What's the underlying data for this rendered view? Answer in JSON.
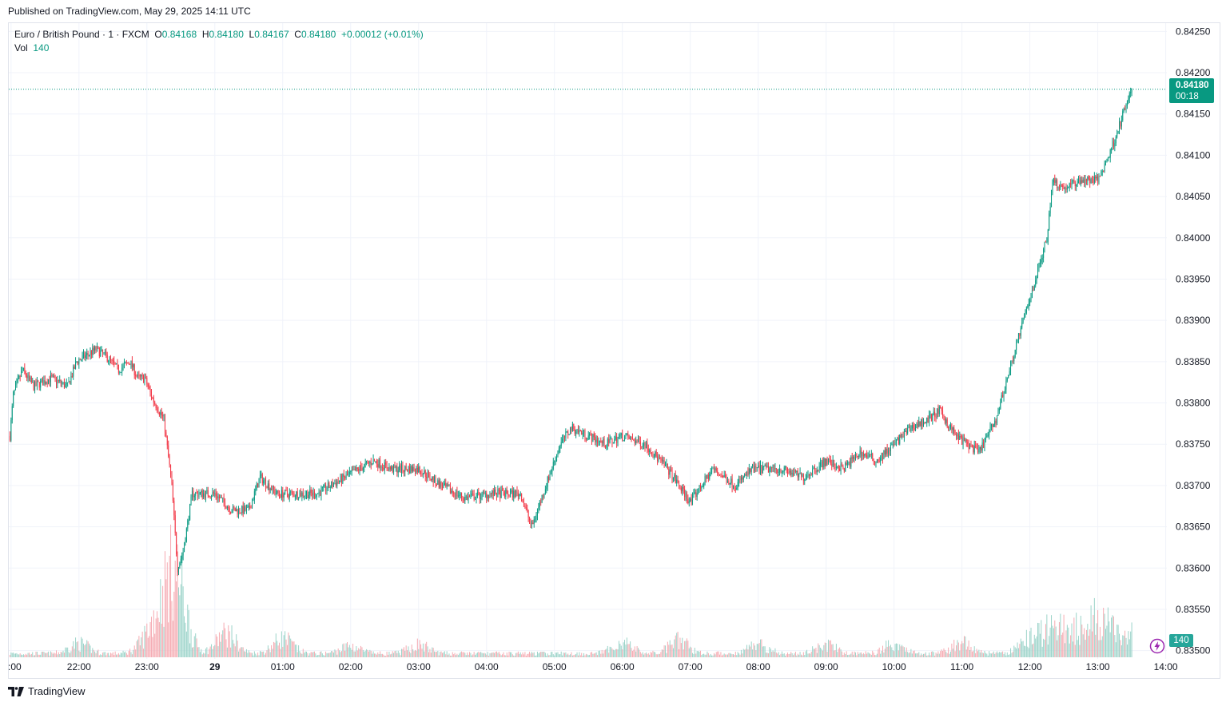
{
  "published": "Published on TradingView.com, May 29, 2025 14:11 UTC",
  "legend": {
    "symbol": "Euro / British Pound · 1 · FXCM",
    "o_label": "O",
    "o": "0.84168",
    "h_label": "H",
    "h": "0.84180",
    "l_label": "L",
    "l": "0.84167",
    "c_label": "C",
    "c": "0.84180",
    "change": "+0.00012 (+0.01%)",
    "vol_label": "Vol",
    "vol": "140"
  },
  "price_tag": {
    "price": "0.84180",
    "countdown": "00:18"
  },
  "vol_tag": "140",
  "footer": {
    "brand": "TradingView"
  },
  "colors": {
    "up": "#089981",
    "down": "#f23645",
    "vol_up": "#9bd3c9",
    "vol_down": "#f5aab1",
    "grid": "#f0f3fa"
  },
  "icons": {
    "bolt": "lightning-icon",
    "logo": "tradingview-logo-icon"
  },
  "chart_data": {
    "type": "candlestick",
    "symbol": "EUR/GBP",
    "interval": "1 minute",
    "ylim": [
      0.8349,
      0.8426
    ],
    "y_ticks": [
      "0.84250",
      "0.84200",
      "0.84150",
      "0.84100",
      "0.84050",
      "0.84000",
      "0.83950",
      "0.83900",
      "0.83850",
      "0.83800",
      "0.83750",
      "0.83700",
      "0.83650",
      "0.83600",
      "0.83550",
      "0.83500"
    ],
    "x_ticks": [
      ":00",
      "22:00",
      "23:00",
      "29",
      "01:00",
      "02:00",
      "03:00",
      "04:00",
      "05:00",
      "06:00",
      "07:00",
      "08:00",
      "09:00",
      "10:00",
      "11:00",
      "12:00",
      "13:00",
      "14:00"
    ],
    "x_tick_minutes": [
      -120,
      -60,
      0,
      60,
      120,
      180,
      240,
      300,
      360,
      420,
      480,
      540,
      600,
      660,
      720,
      780,
      840,
      900
    ],
    "x_range_minutes": [
      -122,
      901
    ],
    "last_price": 0.8418,
    "path_anchors": [
      [
        -121,
        0.8376
      ],
      [
        -118,
        0.8381
      ],
      [
        -110,
        0.8384
      ],
      [
        -100,
        0.8382
      ],
      [
        -85,
        0.8383
      ],
      [
        -70,
        0.8382
      ],
      [
        -62,
        0.8385
      ],
      [
        -45,
        0.83865
      ],
      [
        -35,
        0.83855
      ],
      [
        -25,
        0.8384
      ],
      [
        -15,
        0.8385
      ],
      [
        -8,
        0.8383
      ],
      [
        -2,
        0.8383
      ],
      [
        5,
        0.83805
      ],
      [
        15,
        0.8378
      ],
      [
        22,
        0.837
      ],
      [
        27,
        0.836
      ],
      [
        32,
        0.8362
      ],
      [
        40,
        0.8369
      ],
      [
        60,
        0.8369
      ],
      [
        75,
        0.8367
      ],
      [
        90,
        0.8367
      ],
      [
        100,
        0.8371
      ],
      [
        115,
        0.8369
      ],
      [
        135,
        0.8369
      ],
      [
        150,
        0.8369
      ],
      [
        175,
        0.8371
      ],
      [
        200,
        0.8373
      ],
      [
        215,
        0.8372
      ],
      [
        240,
        0.8372
      ],
      [
        260,
        0.837
      ],
      [
        280,
        0.83685
      ],
      [
        305,
        0.8369
      ],
      [
        330,
        0.8369
      ],
      [
        340,
        0.8365
      ],
      [
        350,
        0.8369
      ],
      [
        365,
        0.8375
      ],
      [
        375,
        0.8377
      ],
      [
        390,
        0.8376
      ],
      [
        405,
        0.8375
      ],
      [
        420,
        0.8376
      ],
      [
        440,
        0.8375
      ],
      [
        460,
        0.8372
      ],
      [
        480,
        0.8368
      ],
      [
        500,
        0.8372
      ],
      [
        520,
        0.837
      ],
      [
        535,
        0.8372
      ],
      [
        560,
        0.8372
      ],
      [
        580,
        0.8371
      ],
      [
        600,
        0.8373
      ],
      [
        615,
        0.8372
      ],
      [
        630,
        0.8374
      ],
      [
        645,
        0.8373
      ],
      [
        660,
        0.8375
      ],
      [
        675,
        0.8377
      ],
      [
        690,
        0.8378
      ],
      [
        700,
        0.8379
      ],
      [
        715,
        0.8376
      ],
      [
        725,
        0.8375
      ],
      [
        735,
        0.8374
      ],
      [
        750,
        0.8378
      ],
      [
        760,
        0.8383
      ],
      [
        770,
        0.8388
      ],
      [
        785,
        0.8395
      ],
      [
        795,
        0.84
      ],
      [
        800,
        0.8407
      ],
      [
        810,
        0.8406
      ],
      [
        825,
        0.8407
      ],
      [
        840,
        0.8407
      ],
      [
        850,
        0.841
      ],
      [
        860,
        0.8414
      ],
      [
        870,
        0.8418
      ]
    ],
    "volume_profile": {
      "baseline": 15,
      "spikes": [
        [
          -60,
          40
        ],
        [
          0,
          40
        ],
        [
          10,
          80
        ],
        [
          20,
          120
        ],
        [
          25,
          130
        ],
        [
          30,
          90
        ],
        [
          70,
          80
        ],
        [
          120,
          60
        ],
        [
          180,
          30
        ],
        [
          240,
          35
        ],
        [
          420,
          45
        ],
        [
          470,
          50
        ],
        [
          540,
          40
        ],
        [
          600,
          35
        ],
        [
          660,
          40
        ],
        [
          720,
          45
        ],
        [
          780,
          60
        ],
        [
          800,
          100
        ],
        [
          820,
          90
        ],
        [
          840,
          110
        ],
        [
          850,
          60
        ],
        [
          870,
          45
        ]
      ],
      "last_volume": 140
    }
  }
}
